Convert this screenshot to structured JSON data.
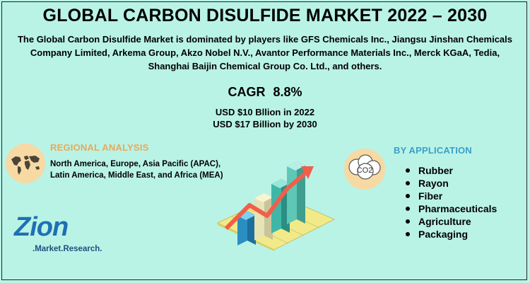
{
  "title": "GLOBAL CARBON DISULFIDE MARKET 2022 – 2030",
  "intro": "The Global Carbon Disulfide Market is dominated by players like GFS Chemicals Inc., Jiangsu Jinshan Chemicals Company Limited, Arkema Group, Akzo Nobel N.V., Avantor Performance Materials Inc., Merck KGaA, Tedia, Shanghai Baijin Chemical Group Co. Ltd., and others.",
  "cagr": {
    "label": "CAGR",
    "value": "8.8%"
  },
  "usd": {
    "line1": "USD $10 Bllion in 2022",
    "line2": "USD $17 Billion  by 2030"
  },
  "regional": {
    "title": "REGIONAL ANALYSIS",
    "text": "North America, Europe, Asia Pacific (APAC), Latin America,  Middle East, and Africa (MEA)"
  },
  "application": {
    "title": "BY APPLICATION",
    "items": [
      "Rubber",
      "Rayon",
      "Fiber",
      "Pharmaceuticals",
      "Agriculture",
      "Packaging"
    ]
  },
  "logo": {
    "main": "Zion",
    "sub": ".Market.Research."
  },
  "icon": {
    "co2": "CO2"
  },
  "colors": {
    "background": "#b9f3e6",
    "regional_title": "#e8a95a",
    "application_title": "#3aa0c9",
    "logo": "#1f6fb4"
  },
  "icons": [
    "world-map-icon",
    "co2-cloud-icon",
    "growth-bar-chart-illustration"
  ]
}
